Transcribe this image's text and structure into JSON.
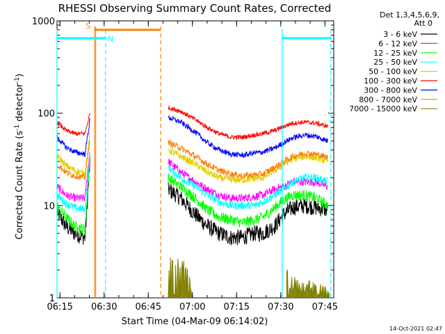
{
  "chart_data": {
    "type": "line",
    "title": "RHESSI Observing Summary Count Rates, Corrected",
    "xlabel": "Start Time (04-Mar-09 06:14:02)",
    "ylabel_main": "Corrected Count Rate (s",
    "ylabel_sup1": "-1",
    "ylabel_mid": " detector",
    "ylabel_sup2": "-1",
    "ylabel_end": ")",
    "y_scale": "log",
    "xlim_minutes": [
      0,
      94
    ],
    "ylim": [
      1,
      1000
    ],
    "x_ticks": [
      {
        "label": "06:15",
        "minute": 1
      },
      {
        "label": "06:30",
        "minute": 16
      },
      {
        "label": "06:45",
        "minute": 31
      },
      {
        "label": "07:00",
        "minute": 46
      },
      {
        "label": "07:15",
        "minute": 61
      },
      {
        "label": "07:30",
        "minute": 76
      },
      {
        "label": "07:45",
        "minute": 91
      }
    ],
    "y_ticks": [
      {
        "label": "1",
        "value": 1
      },
      {
        "label": "10",
        "value": 10
      },
      {
        "label": "100",
        "value": 100
      },
      {
        "label": "1000",
        "value": 1000
      }
    ],
    "legend": {
      "header1": "Det 1,3,4,5,6,9,",
      "header2": "Att 0",
      "placement": "right"
    },
    "series": [
      {
        "name": "3 - 6 keV",
        "color": "#000000",
        "seg1": [
          [
            0,
            8.5
          ],
          [
            3,
            6
          ],
          [
            6,
            5
          ],
          [
            9.5,
            4.5
          ],
          [
            11.2,
            30
          ]
        ],
        "seg2": [
          [
            37.8,
            15
          ],
          [
            42,
            12
          ],
          [
            47,
            8
          ],
          [
            51,
            6
          ],
          [
            55,
            5
          ],
          [
            59,
            4.5
          ],
          [
            63,
            4.5
          ],
          [
            67,
            5
          ],
          [
            70,
            5
          ],
          [
            74,
            6
          ],
          [
            77,
            8
          ],
          [
            80,
            9.5
          ],
          [
            84,
            10
          ],
          [
            88,
            9.5
          ],
          [
            92,
            9
          ]
        ]
      },
      {
        "name": "6 - 12 keV",
        "color": "#ff00ff",
        "seg1": [
          [
            0,
            16
          ],
          [
            3,
            13
          ],
          [
            6,
            12
          ],
          [
            9.5,
            12
          ],
          [
            11.2,
            40
          ]
        ],
        "seg2": [
          [
            37.8,
            30
          ],
          [
            42,
            23
          ],
          [
            47,
            18
          ],
          [
            51,
            15
          ],
          [
            55,
            13
          ],
          [
            59,
            12
          ],
          [
            63,
            12
          ],
          [
            67,
            12.5
          ],
          [
            70,
            13
          ],
          [
            74,
            15
          ],
          [
            77,
            16
          ],
          [
            80,
            18
          ],
          [
            84,
            18
          ],
          [
            88,
            18
          ],
          [
            92,
            16
          ]
        ]
      },
      {
        "name": "12 - 25 keV",
        "color": "#00ff00",
        "seg1": [
          [
            0,
            10
          ],
          [
            3,
            7.5
          ],
          [
            6,
            6
          ],
          [
            9.5,
            5.5
          ],
          [
            11.2,
            35
          ]
        ],
        "seg2": [
          [
            37.8,
            20
          ],
          [
            42,
            16
          ],
          [
            47,
            12
          ],
          [
            51,
            9
          ],
          [
            55,
            7.5
          ],
          [
            59,
            7
          ],
          [
            63,
            6.5
          ],
          [
            67,
            7
          ],
          [
            70,
            7.5
          ],
          [
            74,
            9.5
          ],
          [
            77,
            11.5
          ],
          [
            80,
            13
          ],
          [
            84,
            13
          ],
          [
            88,
            12
          ],
          [
            92,
            10
          ]
        ]
      },
      {
        "name": "25 - 50 keV",
        "color": "#00ffff",
        "seg1": [
          [
            0,
            13
          ],
          [
            3,
            10.5
          ],
          [
            6,
            9.5
          ],
          [
            9.5,
            9
          ],
          [
            11.2,
            35
          ]
        ],
        "seg2": [
          [
            37.8,
            26
          ],
          [
            42,
            20
          ],
          [
            47,
            16
          ],
          [
            51,
            13
          ],
          [
            55,
            11
          ],
          [
            59,
            10
          ],
          [
            63,
            10
          ],
          [
            67,
            10
          ],
          [
            70,
            11
          ],
          [
            74,
            13
          ],
          [
            77,
            15
          ],
          [
            80,
            18
          ],
          [
            84,
            20
          ],
          [
            88,
            20
          ],
          [
            92,
            18
          ]
        ]
      },
      {
        "name": "50 - 100 keV",
        "color": "#e0d000",
        "seg1": [
          [
            0,
            35
          ],
          [
            3,
            27
          ],
          [
            6,
            24
          ],
          [
            9.5,
            22
          ],
          [
            11.2,
            60
          ]
        ],
        "seg2": [
          [
            37.8,
            40
          ],
          [
            42,
            34
          ],
          [
            47,
            28
          ],
          [
            51,
            23
          ],
          [
            55,
            20
          ],
          [
            59,
            19
          ],
          [
            63,
            19
          ],
          [
            67,
            19.5
          ],
          [
            70,
            20
          ],
          [
            74,
            24
          ],
          [
            77,
            28
          ],
          [
            80,
            32
          ],
          [
            84,
            34
          ],
          [
            88,
            33
          ],
          [
            92,
            30
          ]
        ]
      },
      {
        "name": "100 - 300 keV",
        "color": "#ff0000",
        "seg1": [
          [
            0,
            80
          ],
          [
            3,
            65
          ],
          [
            6,
            60
          ],
          [
            9.5,
            60
          ],
          [
            11.2,
            100
          ]
        ],
        "seg2": [
          [
            37.8,
            115
          ],
          [
            42,
            105
          ],
          [
            47,
            85
          ],
          [
            51,
            70
          ],
          [
            55,
            60
          ],
          [
            59,
            55
          ],
          [
            63,
            55
          ],
          [
            67,
            58
          ],
          [
            70,
            60
          ],
          [
            74,
            65
          ],
          [
            77,
            72
          ],
          [
            80,
            78
          ],
          [
            84,
            80
          ],
          [
            88,
            78
          ],
          [
            92,
            72
          ]
        ]
      },
      {
        "name": "300 - 800 keV",
        "color": "#0000ff",
        "seg1": [
          [
            0,
            55
          ],
          [
            3,
            43
          ],
          [
            6,
            38
          ],
          [
            9.5,
            36
          ],
          [
            11.2,
            85
          ]
        ],
        "seg2": [
          [
            37.8,
            90
          ],
          [
            42,
            80
          ],
          [
            47,
            62
          ],
          [
            51,
            48
          ],
          [
            55,
            40
          ],
          [
            59,
            36
          ],
          [
            63,
            35
          ],
          [
            67,
            37
          ],
          [
            70,
            38
          ],
          [
            74,
            42
          ],
          [
            77,
            48
          ],
          [
            80,
            54
          ],
          [
            84,
            58
          ],
          [
            88,
            56
          ],
          [
            92,
            50
          ]
        ]
      },
      {
        "name": "800 - 7000 keV",
        "color": "#ff8000",
        "seg1": [
          [
            0,
            28
          ],
          [
            3,
            23
          ],
          [
            6,
            21
          ],
          [
            9.5,
            20
          ],
          [
            11.2,
            55
          ]
        ],
        "seg2": [
          [
            37.8,
            48
          ],
          [
            42,
            42
          ],
          [
            47,
            34
          ],
          [
            51,
            28
          ],
          [
            55,
            24
          ],
          [
            59,
            22
          ],
          [
            63,
            21
          ],
          [
            67,
            21.5
          ],
          [
            70,
            22
          ],
          [
            74,
            26
          ],
          [
            77,
            30
          ],
          [
            80,
            34
          ],
          [
            84,
            37
          ],
          [
            88,
            36
          ],
          [
            92,
            33
          ]
        ]
      },
      {
        "name": "7000 - 15000 keV",
        "color": "#808000",
        "seg1": [],
        "seg2": [
          [
            37.8,
            2.5
          ],
          [
            40,
            2.2
          ],
          [
            42,
            2.1
          ],
          [
            44,
            1.9
          ],
          [
            46,
            1.3
          ]
        ],
        "seg3": [
          [
            78,
            1.6
          ],
          [
            82,
            1.4
          ],
          [
            86,
            1.2
          ],
          [
            90,
            1.1
          ],
          [
            92.5,
            1.1
          ]
        ]
      }
    ],
    "annotations": {
      "s_label": "S",
      "n_label": "N",
      "s_bar_minutes": [
        12.8,
        35.2
      ],
      "n_bar_minutes_1": [
        0,
        16.5
      ],
      "n_bar_minutes_2": [
        76.5,
        93
      ],
      "bar_value": 650,
      "orange_lines_minutes": [
        12.8,
        35.2
      ],
      "cyan_lines_minutes": [
        0,
        16.5,
        76.5,
        93
      ],
      "orange_color": "#ff8000",
      "cyan_color": "#00ffff"
    },
    "grid": false
  },
  "footer_date": "14-Oct-2021 02:47"
}
